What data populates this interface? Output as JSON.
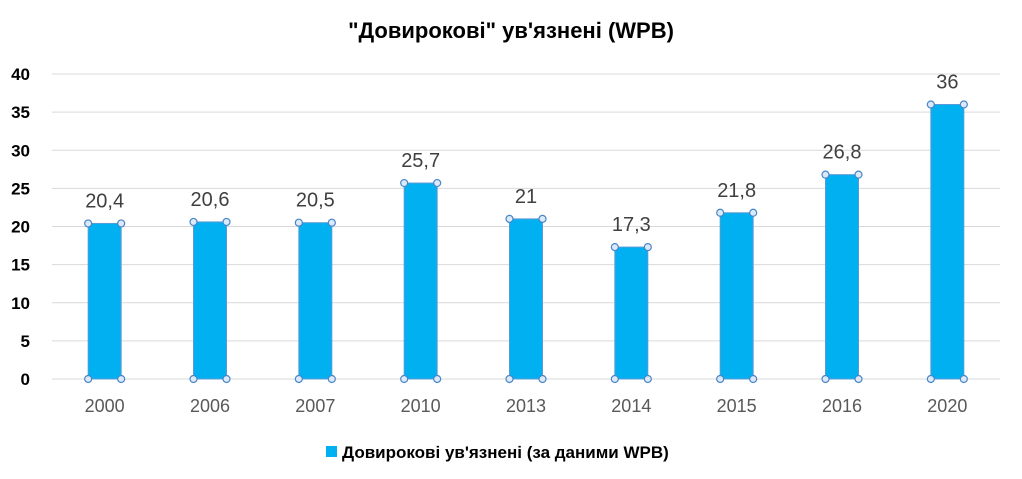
{
  "chart_data": {
    "type": "bar",
    "title": "\"Довирокові\" ув'язнені (WPB)",
    "categories": [
      "2000",
      "2006",
      "2007",
      "2010",
      "2013",
      "2014",
      "2015",
      "2016",
      "2020"
    ],
    "series": [
      {
        "name": "Довирокові ув'язнені (за даними WPB)",
        "values": [
          20.4,
          20.6,
          20.5,
          25.7,
          21,
          17.3,
          21.8,
          26.8,
          36
        ],
        "labels": [
          "20,4",
          "20,6",
          "20,5",
          "25,7",
          "21",
          "17,3",
          "21,8",
          "26,8",
          "36"
        ],
        "color": "#00b0f0"
      }
    ],
    "yticks": [
      "0",
      "5",
      "10",
      "15",
      "20",
      "25",
      "30",
      "35",
      "40"
    ],
    "ylim": [
      0,
      40
    ],
    "grid": true,
    "legend": "bottom"
  }
}
